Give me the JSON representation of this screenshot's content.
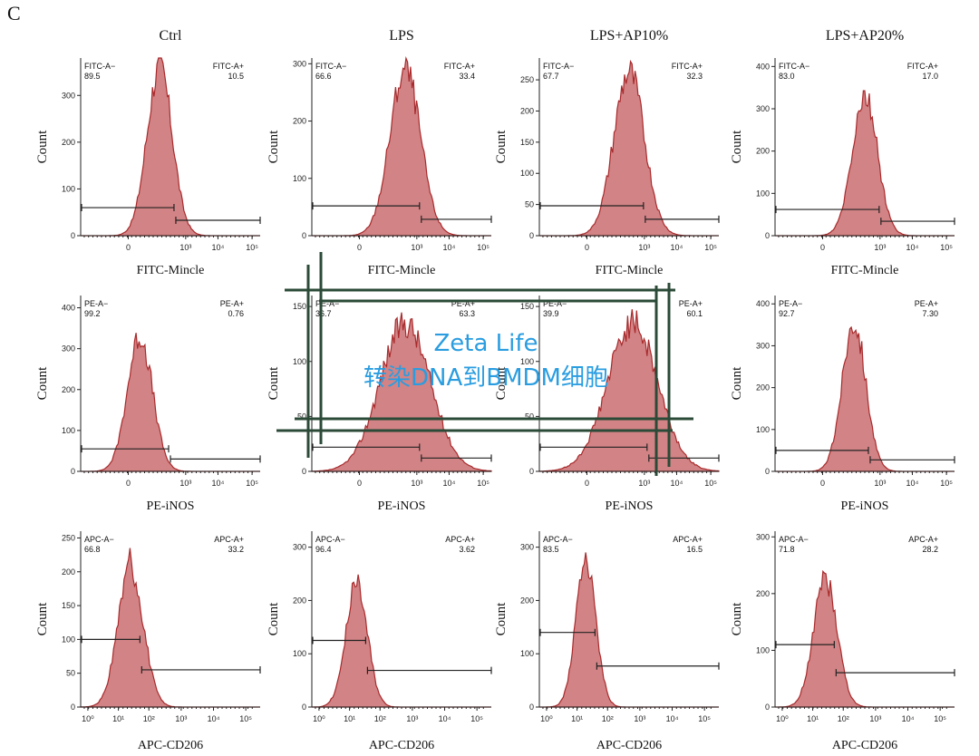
{
  "panel_letter": "C",
  "chart_data": {
    "type": "flow_cytometry_histogram_grid",
    "columns": [
      "Ctrl",
      "LPS",
      "LPS+AP10%",
      "LPS+AP20%"
    ],
    "y_label": "Count",
    "rows": [
      {
        "marker": "FITC-Mincle",
        "scale": "biexponential",
        "x_tick_labels": [
          "0",
          "10³",
          "10⁴",
          "10⁵"
        ],
        "neg_label": "FITC-A−",
        "pos_label": "FITC-A+",
        "panels": [
          {
            "y_max": 380,
            "y_ticks": [
              "0",
              "100",
              "200",
              "300"
            ],
            "y_tick_values": [
              0,
              100,
              200,
              300
            ],
            "neg": "89.5",
            "pos": "10.5",
            "peak_x": 0.44,
            "peak_height": 360,
            "width": 0.07,
            "gate_y": 60
          },
          {
            "y_max": 310,
            "y_ticks": [
              "0",
              "100",
              "200",
              "300"
            ],
            "y_tick_values": [
              0,
              100,
              200,
              300
            ],
            "neg": "66.6",
            "pos": "33.4",
            "peak_x": 0.52,
            "peak_height": 290,
            "width": 0.085,
            "gate_y": 52
          },
          {
            "y_max": 285,
            "y_ticks": [
              "0",
              "50",
              "100",
              "150",
              "200",
              "250"
            ],
            "y_tick_values": [
              0,
              50,
              100,
              150,
              200,
              250
            ],
            "neg": "67.7",
            "pos": "32.3",
            "peak_x": 0.5,
            "peak_height": 262,
            "width": 0.085,
            "gate_y": 48
          },
          {
            "y_max": 420,
            "y_ticks": [
              "0",
              "100",
              "200",
              "300",
              "400"
            ],
            "y_tick_values": [
              0,
              100,
              200,
              300,
              400
            ],
            "neg": "83.0",
            "pos": "17.0",
            "peak_x": 0.5,
            "peak_height": 335,
            "width": 0.07,
            "gate_y": 62
          }
        ]
      },
      {
        "marker": "PE-iNOS",
        "scale": "biexponential",
        "x_tick_labels": [
          "0",
          "10³",
          "10⁴",
          "10⁵"
        ],
        "neg_label": "PE-A−",
        "pos_label": "PE-A+",
        "panels": [
          {
            "y_max": 430,
            "y_ticks": [
              "0",
              "100",
              "200",
              "300",
              "400"
            ],
            "y_tick_values": [
              0,
              100,
              200,
              300,
              400
            ],
            "neg": "99.2",
            "pos": "0.76",
            "peak_x": 0.33,
            "peak_height": 330,
            "width": 0.07,
            "gate_y": 55,
            "gate_split": 0.49
          },
          {
            "y_max": 160,
            "y_ticks": [
              "0",
              "50",
              "100",
              "150"
            ],
            "y_tick_values": [
              0,
              50,
              100,
              150
            ],
            "neg": "36.7",
            "pos": "63.3",
            "peak_x": 0.52,
            "peak_height": 135,
            "width": 0.14,
            "gate_y": 22
          },
          {
            "y_max": 160,
            "y_ticks": [
              "0",
              "50",
              "100",
              "150"
            ],
            "y_tick_values": [
              0,
              50,
              100,
              150
            ],
            "neg": "39.9",
            "pos": "60.1",
            "peak_x": 0.52,
            "peak_height": 135,
            "width": 0.14,
            "gate_y": 22
          },
          {
            "y_max": 420,
            "y_ticks": [
              "0",
              "100",
              "200",
              "300",
              "400"
            ],
            "y_tick_values": [
              0,
              100,
              200,
              300,
              400
            ],
            "neg": "92.7",
            "pos": "7.30",
            "peak_x": 0.44,
            "peak_height": 360,
            "width": 0.065,
            "gate_y": 50
          }
        ]
      },
      {
        "marker": "APC-CD206",
        "scale": "log",
        "x_tick_labels": [
          "10⁰",
          "10¹",
          "10²",
          "10³",
          "10⁴",
          "10⁵"
        ],
        "neg_label": "APC-A−",
        "pos_label": "APC-A+",
        "panels": [
          {
            "y_max": 260,
            "y_ticks": [
              "0",
              "50",
              "100",
              "150",
              "200",
              "250"
            ],
            "y_tick_values": [
              0,
              50,
              100,
              150,
              200,
              250
            ],
            "neg": "66.8",
            "pos": "33.2",
            "peak_x": 0.28,
            "peak_height": 205,
            "width": 0.07,
            "gate_y": 100
          },
          {
            "y_max": 330,
            "y_ticks": [
              "0",
              "100",
              "200",
              "300"
            ],
            "y_tick_values": [
              0,
              100,
              200,
              300
            ],
            "neg": "96.4",
            "pos": "3.62",
            "peak_x": 0.25,
            "peak_height": 230,
            "width": 0.06,
            "gate_y": 125
          },
          {
            "y_max": 330,
            "y_ticks": [
              "0",
              "100",
              "200",
              "300"
            ],
            "y_tick_values": [
              0,
              100,
              200,
              300
            ],
            "neg": "83.5",
            "pos": "16.5",
            "peak_x": 0.26,
            "peak_height": 275,
            "width": 0.055,
            "gate_y": 140
          },
          {
            "y_max": 310,
            "y_ticks": [
              "0",
              "100",
              "200",
              "300"
            ],
            "y_tick_values": [
              0,
              100,
              200,
              300
            ],
            "neg": "71.8",
            "pos": "28.2",
            "peak_x": 0.28,
            "peak_height": 225,
            "width": 0.065,
            "gate_y": 110
          }
        ]
      }
    ]
  },
  "watermark": {
    "line1": "Zeta Life",
    "line2": "转染DNA到BMDM细胞",
    "line_color": "#2b4a37",
    "text_color": "#2a9de0"
  },
  "colors": {
    "fill": "#c8686a",
    "stroke": "#a82a2c"
  }
}
